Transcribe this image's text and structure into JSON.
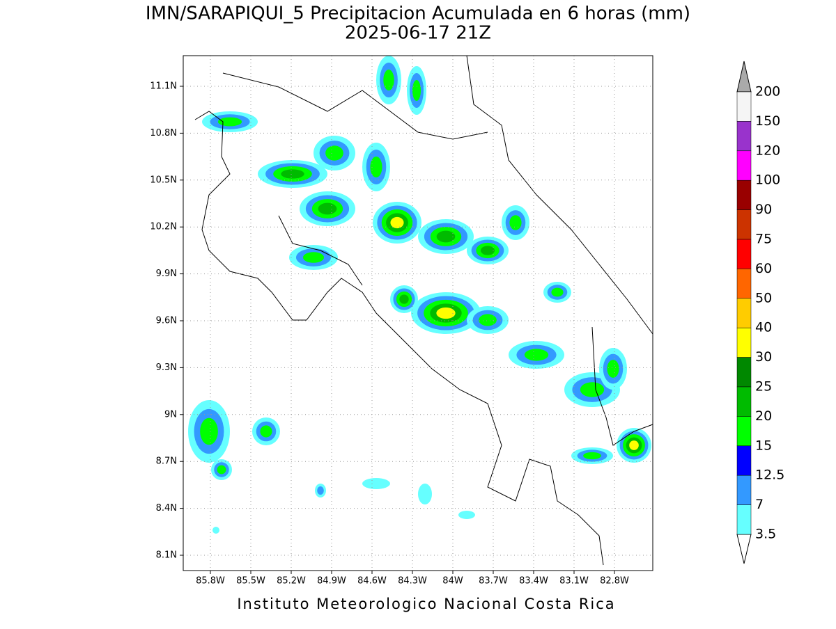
{
  "header": {
    "title": "IMN/SARAPIQUI_5 Precipitacion Acumulada en 6 horas (mm)",
    "subtitle": "2025-06-17 21Z"
  },
  "map": {
    "lat_labels": [
      "11.1N",
      "10.8N",
      "10.5N",
      "10.2N",
      "9.9N",
      "9.6N",
      "9.3N",
      "9N",
      "8.7N",
      "8.4N",
      "8.1N"
    ],
    "lon_labels": [
      "85.8W",
      "85.5W",
      "85.2W",
      "84.9W",
      "84.6W",
      "84.3W",
      "84W",
      "83.7W",
      "83.4W",
      "83.1W",
      "82.8W"
    ]
  },
  "colorbar": {
    "labels": [
      "200",
      "150",
      "120",
      "100",
      "90",
      "75",
      "60",
      "50",
      "40",
      "30",
      "25",
      "20",
      "15",
      "12.5",
      "7",
      "3.5"
    ],
    "colors": [
      "#f5f5f5",
      "#9933cc",
      "#ff00ff",
      "#990000",
      "#cc3300",
      "#ff0000",
      "#ff6600",
      "#ffcc00",
      "#ffff00",
      "#008800",
      "#00bb00",
      "#00ff00",
      "#0000ff",
      "#3399ff",
      "#66ffff"
    ],
    "over_color": "#aaaaaa",
    "under_color": "#ffffff"
  },
  "footer": "Instituto Meteorologico Nacional Costa Rica"
}
